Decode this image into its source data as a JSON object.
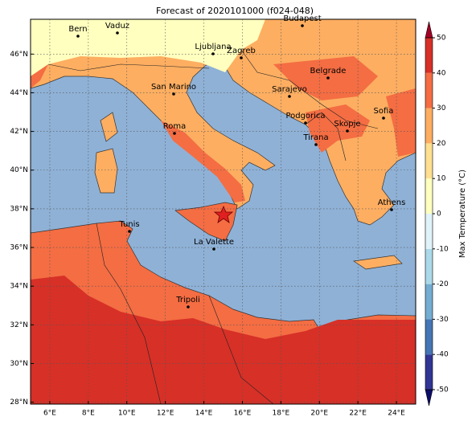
{
  "title": "Forecast of 2020101000 (f024-048)",
  "map": {
    "xlim": [
      5,
      25
    ],
    "ylim": [
      27.9,
      47.8
    ],
    "xticks": [
      {
        "value": 6,
        "label": "6°E"
      },
      {
        "value": 8,
        "label": "8°E"
      },
      {
        "value": 10,
        "label": "10°E"
      },
      {
        "value": 12,
        "label": "12°E"
      },
      {
        "value": 14,
        "label": "14°E"
      },
      {
        "value": 16,
        "label": "16°E"
      },
      {
        "value": 18,
        "label": "18°E"
      },
      {
        "value": 20,
        "label": "20°E"
      },
      {
        "value": 22,
        "label": "22°E"
      },
      {
        "value": 24,
        "label": "24°E"
      }
    ],
    "yticks": [
      {
        "value": 28,
        "label": "28°N"
      },
      {
        "value": 30,
        "label": "30°N"
      },
      {
        "value": 32,
        "label": "32°N"
      },
      {
        "value": 34,
        "label": "34°N"
      },
      {
        "value": 36,
        "label": "36°N"
      },
      {
        "value": 38,
        "label": "38°N"
      },
      {
        "value": 40,
        "label": "40°N"
      },
      {
        "value": 42,
        "label": "42°N"
      },
      {
        "value": 44,
        "label": "44°N"
      },
      {
        "value": 46,
        "label": "46°N"
      }
    ],
    "grid": true,
    "cities": [
      "Bern",
      "Vaduz",
      "Budapest",
      "Ljubljana",
      "Zagreb",
      "Belgrade",
      "San Marino",
      "Sarajevo",
      "Sofia",
      "Podgorica",
      "Roma",
      "Skopje",
      "Tirana",
      "Athens",
      "Tunis",
      "La Valette",
      "Tripoli"
    ]
  },
  "colorbar": {
    "label": "Max Temperature (°C)",
    "ticks": [
      -50,
      -40,
      -30,
      -20,
      -10,
      0,
      10,
      20,
      30,
      40,
      50
    ],
    "colors": [
      "#313695",
      "#4575b4",
      "#74add1",
      "#abd9e9",
      "#e0f3f8",
      "#ffffbf",
      "#fee090",
      "#fdae61",
      "#f46d43",
      "#d73027"
    ],
    "under": "#0d0d6b",
    "over": "#a50026"
  }
}
